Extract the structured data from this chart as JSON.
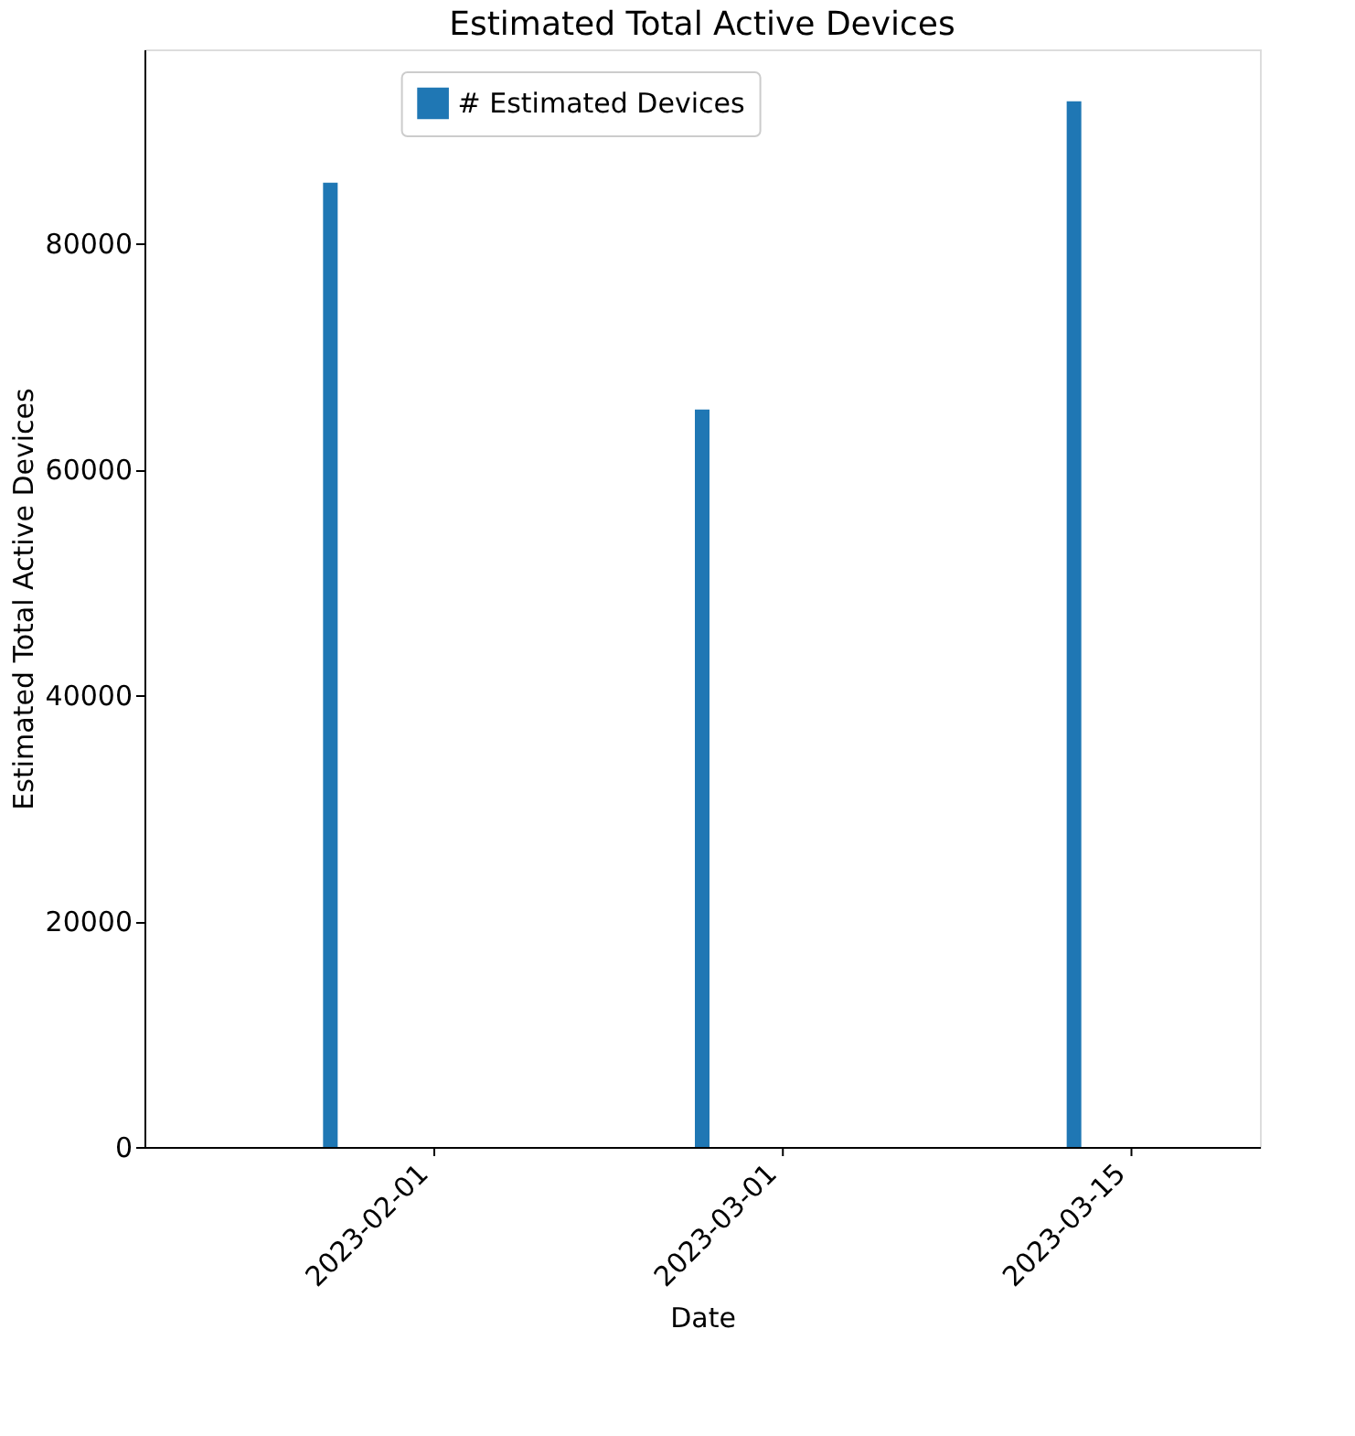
{
  "chart_data": {
    "type": "bar",
    "title": "Estimated Total Active Devices",
    "xlabel": "Date",
    "ylabel": "Estimated Total Active Devices",
    "categories": [
      null,
      null,
      null
    ],
    "series": [
      {
        "name": "# Estimated Devices",
        "color": "#1f77b4",
        "values": [
          85400,
          65300,
          92600
        ]
      }
    ],
    "annotations": [
      "2023-02-01",
      "2023-03-01",
      "2023-03-15"
    ],
    "ylim": [
      0,
      97200
    ],
    "yticks": [
      0,
      20000,
      40000,
      60000,
      80000
    ],
    "grid": false,
    "legend": "top"
  }
}
